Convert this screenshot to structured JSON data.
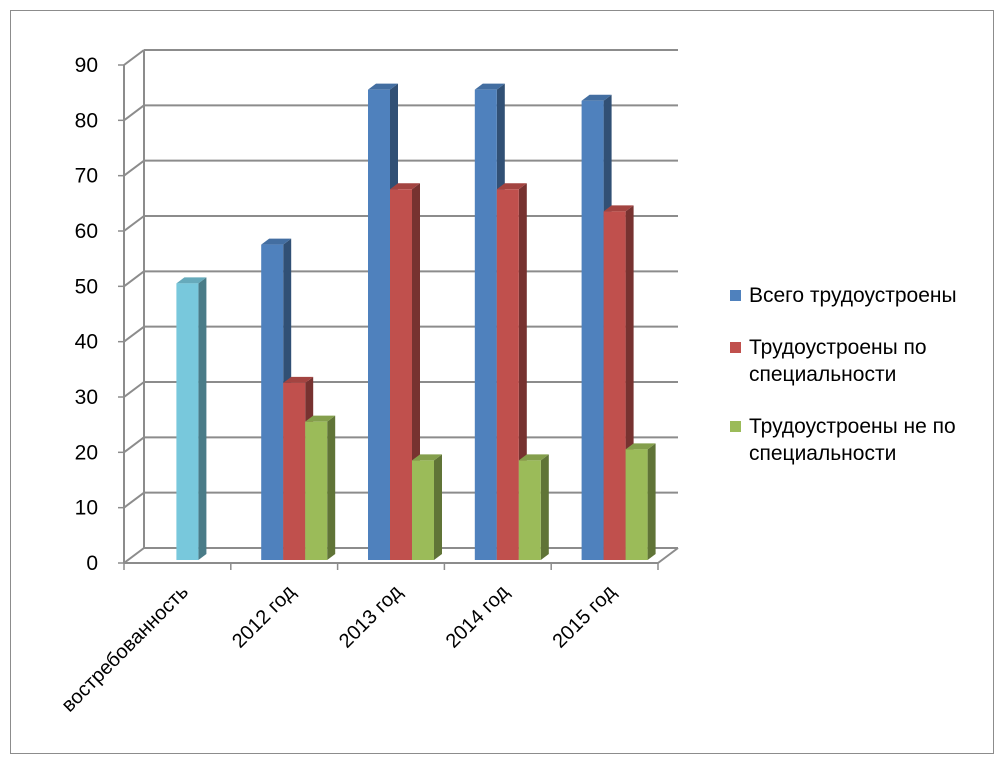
{
  "chart_data": {
    "type": "bar",
    "style": "3d-clustered-column",
    "categories": [
      "востребованность",
      "2012 год",
      "2013 год",
      "2014 год",
      "2015 год"
    ],
    "series": [
      {
        "name": "",
        "color": "#78c8dc",
        "values": [
          50,
          null,
          null,
          null,
          null
        ]
      },
      {
        "name": "Всего трудоустроены",
        "color": "#4f81bd",
        "values": [
          null,
          57,
          85,
          85,
          83
        ]
      },
      {
        "name": "Трудоустроены по специальности",
        "color": "#c0504d",
        "values": [
          null,
          32,
          67,
          67,
          63
        ]
      },
      {
        "name": "Трудоустроены не по специальности",
        "color": "#9bbb59",
        "values": [
          null,
          25,
          18,
          18,
          20
        ]
      }
    ],
    "ylim": [
      0,
      90
    ],
    "yticks": [
      0,
      10,
      20,
      30,
      40,
      50,
      60,
      70,
      80,
      90
    ],
    "grid": true,
    "legend_position": "right",
    "title": "",
    "xlabel": "",
    "ylabel": ""
  }
}
